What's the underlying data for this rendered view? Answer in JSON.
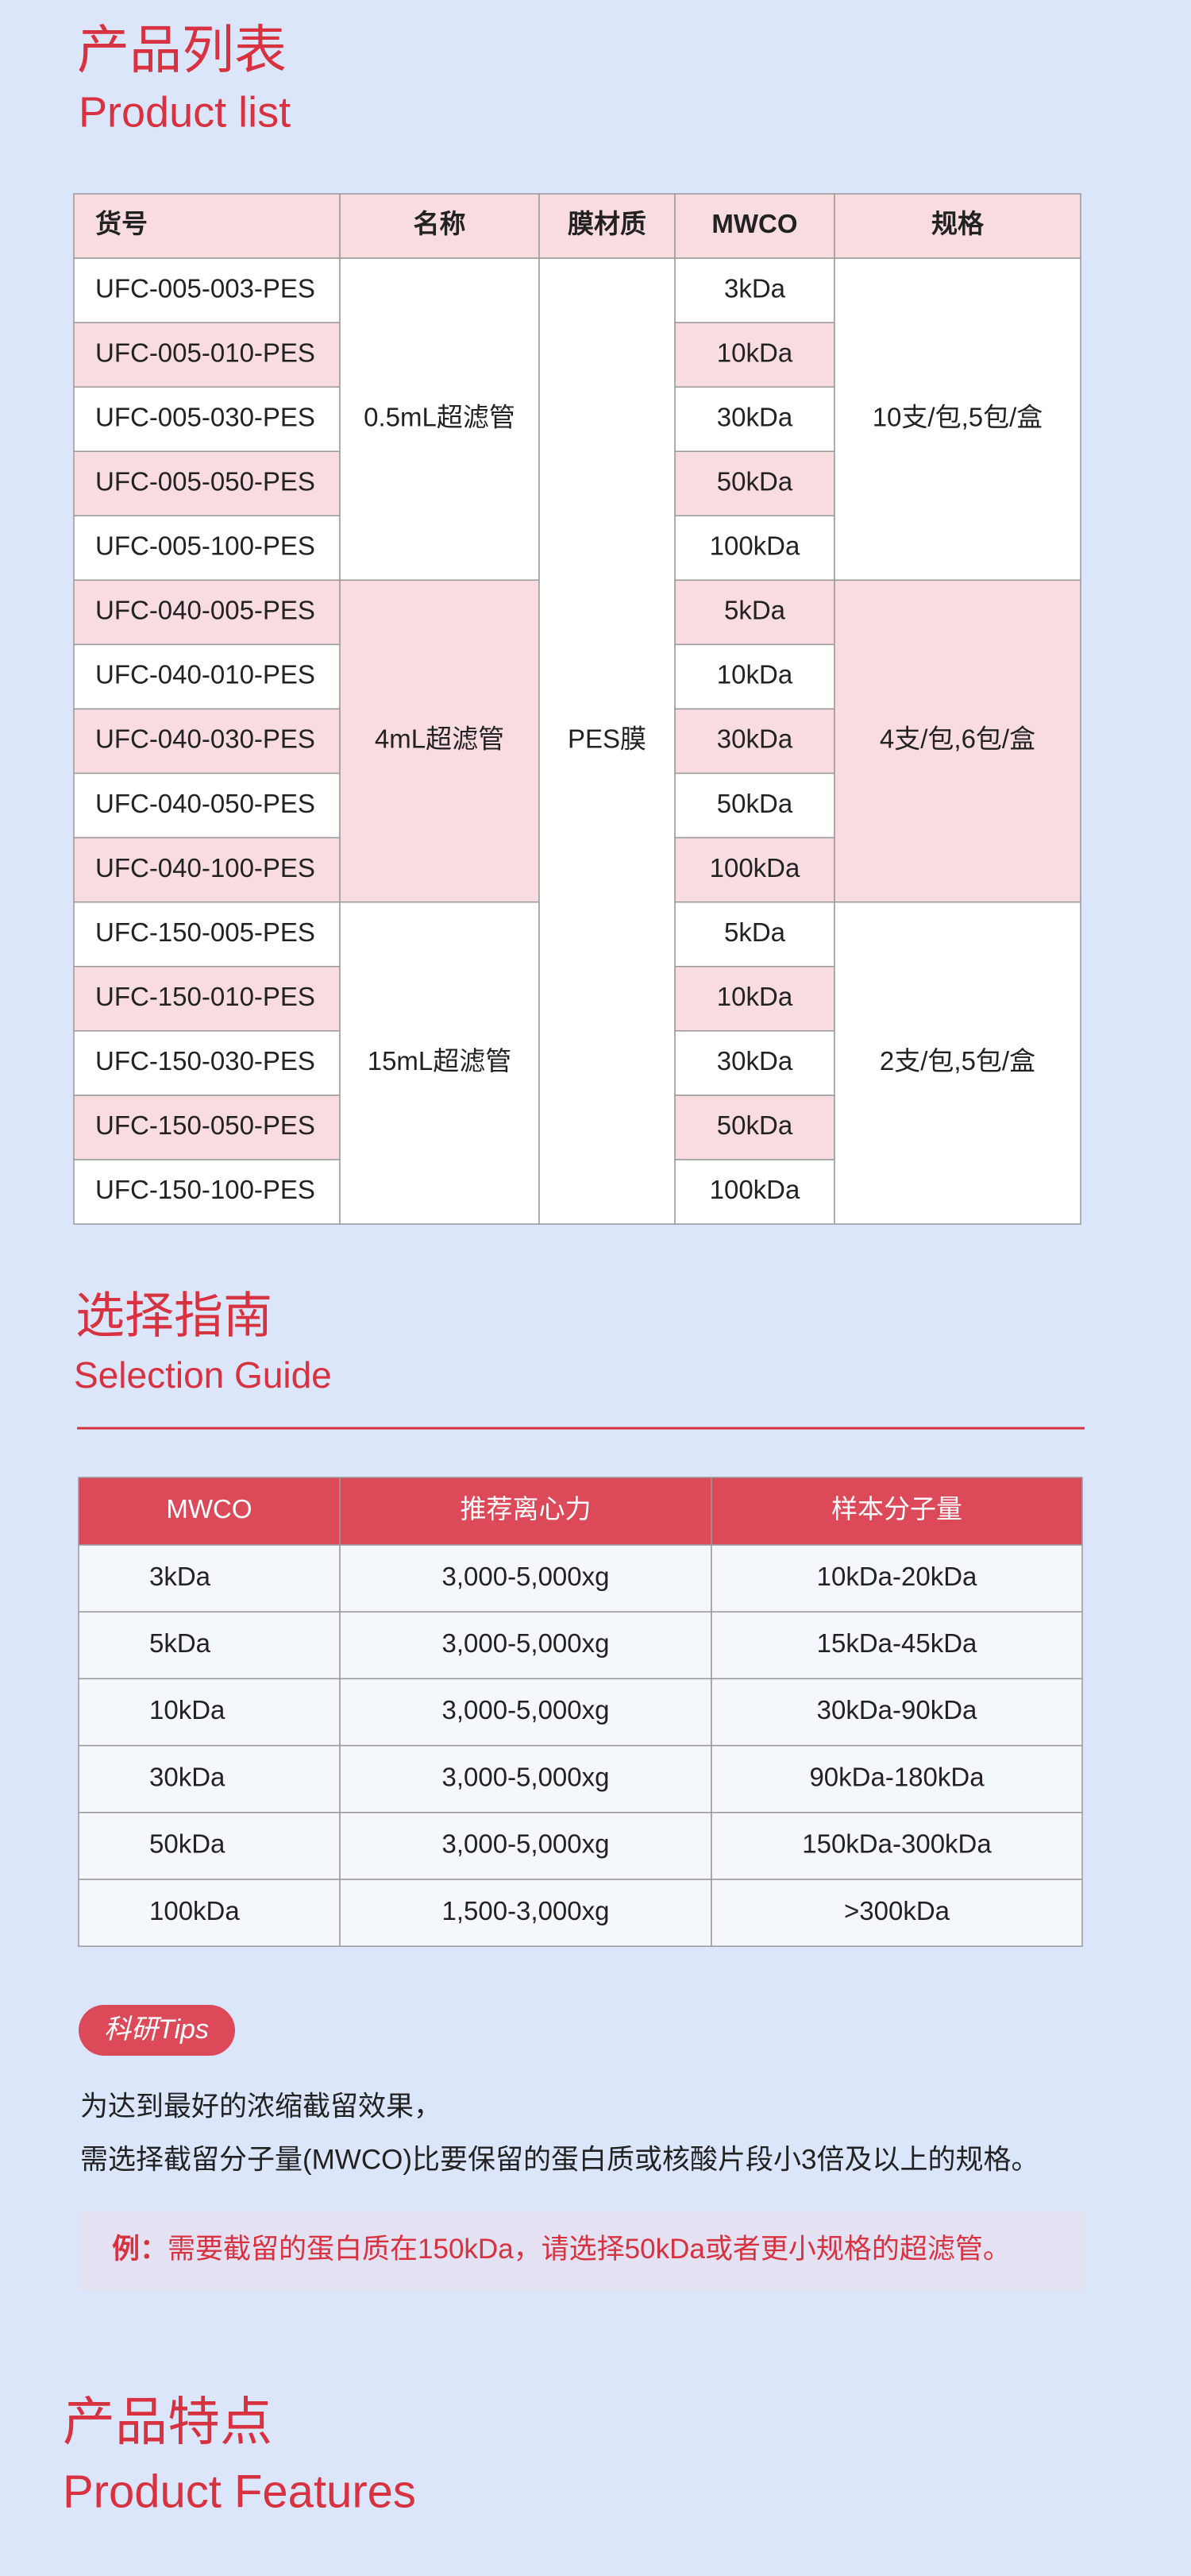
{
  "product_list": {
    "title": "产品列表",
    "subtitle": "Product list",
    "table": {
      "headers": [
        "货号",
        "名称",
        "膜材质",
        "MWCO",
        "规格"
      ],
      "membrane": "PES膜",
      "groups": [
        {
          "name": "0.5mL超滤管",
          "spec": "10支/包,5包/盒",
          "rows": [
            [
              "UFC-005-003-PES",
              "3kDa"
            ],
            [
              "UFC-005-010-PES",
              "10kDa"
            ],
            [
              "UFC-005-030-PES",
              "30kDa"
            ],
            [
              "UFC-005-050-PES",
              "50kDa"
            ],
            [
              "UFC-005-100-PES",
              "100kDa"
            ]
          ]
        },
        {
          "name": "4mL超滤管",
          "spec": "4支/包,6包/盒",
          "rows": [
            [
              "UFC-040-005-PES",
              "5kDa"
            ],
            [
              "UFC-040-010-PES",
              "10kDa"
            ],
            [
              "UFC-040-030-PES",
              "30kDa"
            ],
            [
              "UFC-040-050-PES",
              "50kDa"
            ],
            [
              "UFC-040-100-PES",
              "100kDa"
            ]
          ]
        },
        {
          "name": "15mL超滤管",
          "spec": "2支/包,5包/盒",
          "rows": [
            [
              "UFC-150-005-PES",
              "5kDa"
            ],
            [
              "UFC-150-010-PES",
              "10kDa"
            ],
            [
              "UFC-150-030-PES",
              "30kDa"
            ],
            [
              "UFC-150-050-PES",
              "50kDa"
            ],
            [
              "UFC-150-100-PES",
              "100kDa"
            ]
          ]
        }
      ]
    }
  },
  "selection_guide": {
    "title": "选择指南",
    "subtitle": "Selection Guide",
    "table": {
      "headers": [
        "MWCO",
        "推荐离心力",
        "样本分子量"
      ],
      "rows": [
        [
          "3kDa",
          "3,000-5,000xg",
          "10kDa-20kDa"
        ],
        [
          "5kDa",
          "3,000-5,000xg",
          "15kDa-45kDa"
        ],
        [
          "10kDa",
          "3,000-5,000xg",
          "30kDa-90kDa"
        ],
        [
          "30kDa",
          "3,000-5,000xg",
          "90kDa-180kDa"
        ],
        [
          "50kDa",
          "3,000-5,000xg",
          "150kDa-300kDa"
        ],
        [
          "100kDa",
          "1,500-3,000xg",
          ">300kDa"
        ]
      ]
    }
  },
  "tips": {
    "badge": "科研Tips",
    "lines": [
      "为达到最好的浓缩截留效果，",
      "需选择截留分子量(MWCO)比要保留的蛋白质或核酸片段小3倍及以上的规格。"
    ],
    "example_label": "例：",
    "example_text": "需要截留的蛋白质在150kDa，请选择50kDa或者更小规格的超滤管。"
  },
  "product_features": {
    "title": "产品特点",
    "subtitle": "Product Features"
  }
}
